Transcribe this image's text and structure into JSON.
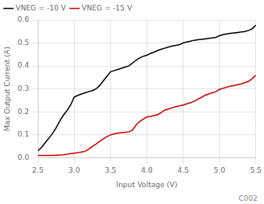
{
  "chart_data": {
    "type": "line",
    "xlabel": "Input Voltage (V)",
    "ylabel": "Max Output Current (A)",
    "annotations": [
      "C002"
    ],
    "xlim": [
      2.5,
      5.5
    ],
    "ylim": [
      0,
      0.6
    ],
    "xticks": [
      2.5,
      {
        "value": 3,
        "label": "3.0"
      },
      3.5,
      {
        "value": 4,
        "label": "4.0"
      },
      4.5,
      {
        "value": 5,
        "label": "5.0"
      },
      5.5
    ],
    "yticks": [
      {
        "value": 0,
        "label": "0.0"
      },
      0.1,
      0.2,
      0.3,
      0.4,
      0.5,
      0.6
    ],
    "grid": true,
    "legend": "upper left",
    "x": [
      2.5,
      2.55,
      2.6,
      2.65,
      2.7,
      2.75,
      2.8,
      2.85,
      2.9,
      2.95,
      3.0,
      3.05,
      3.1,
      3.15,
      3.2,
      3.25,
      3.3,
      3.35,
      3.4,
      3.45,
      3.5,
      3.55,
      3.6,
      3.65,
      3.7,
      3.75,
      3.8,
      3.85,
      3.9,
      3.95,
      4.0,
      4.05,
      4.1,
      4.15,
      4.2,
      4.25,
      4.3,
      4.35,
      4.4,
      4.45,
      4.5,
      4.55,
      4.6,
      4.65,
      4.7,
      4.75,
      4.8,
      4.85,
      4.9,
      4.95,
      5.0,
      5.05,
      5.1,
      5.15,
      5.2,
      5.25,
      5.3,
      5.35,
      5.4,
      5.45,
      5.5
    ],
    "series": [
      {
        "name": "VNEG = -10 V",
        "color": "#000000",
        "values": [
          0.03,
          0.045,
          0.065,
          0.085,
          0.105,
          0.13,
          0.16,
          0.185,
          0.205,
          0.23,
          0.265,
          0.272,
          0.278,
          0.283,
          0.288,
          0.293,
          0.3,
          0.315,
          0.335,
          0.355,
          0.375,
          0.38,
          0.385,
          0.39,
          0.395,
          0.4,
          0.412,
          0.425,
          0.435,
          0.442,
          0.447,
          0.455,
          0.46,
          0.468,
          0.473,
          0.478,
          0.483,
          0.487,
          0.49,
          0.493,
          0.5,
          0.505,
          0.508,
          0.512,
          0.514,
          0.516,
          0.518,
          0.52,
          0.522,
          0.525,
          0.532,
          0.537,
          0.54,
          0.542,
          0.544,
          0.546,
          0.548,
          0.55,
          0.555,
          0.562,
          0.578
        ]
      },
      {
        "name": "VNEG = -15 V",
        "color": "#cc0000",
        "values": [
          0.01,
          0.01,
          0.01,
          0.01,
          0.01,
          0.011,
          0.012,
          0.013,
          0.015,
          0.018,
          0.02,
          0.022,
          0.025,
          0.028,
          0.038,
          0.05,
          0.06,
          0.072,
          0.082,
          0.092,
          0.1,
          0.104,
          0.107,
          0.109,
          0.111,
          0.113,
          0.12,
          0.142,
          0.158,
          0.168,
          0.178,
          0.18,
          0.184,
          0.188,
          0.198,
          0.208,
          0.213,
          0.218,
          0.223,
          0.226,
          0.23,
          0.235,
          0.24,
          0.246,
          0.255,
          0.263,
          0.272,
          0.278,
          0.283,
          0.288,
          0.298,
          0.303,
          0.308,
          0.312,
          0.315,
          0.318,
          0.322,
          0.328,
          0.333,
          0.345,
          0.36
        ]
      }
    ]
  }
}
